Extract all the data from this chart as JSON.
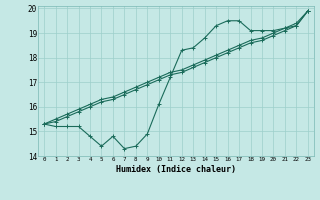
{
  "xlabel": "Humidex (Indice chaleur)",
  "xlim": [
    -0.5,
    23.5
  ],
  "ylim": [
    14,
    20.1
  ],
  "yticks": [
    14,
    15,
    16,
    17,
    18,
    19,
    20
  ],
  "xticks": [
    0,
    1,
    2,
    3,
    4,
    5,
    6,
    7,
    8,
    9,
    10,
    11,
    12,
    13,
    14,
    15,
    16,
    17,
    18,
    19,
    20,
    21,
    22,
    23
  ],
  "background_color": "#c5e8e5",
  "grid_color": "#9dcfcb",
  "line_color": "#1a6b5a",
  "line1": [
    15.3,
    15.2,
    15.2,
    15.2,
    14.8,
    14.4,
    14.8,
    14.3,
    14.4,
    14.9,
    16.1,
    17.2,
    18.3,
    18.4,
    18.8,
    19.3,
    19.5,
    19.5,
    19.1,
    19.1,
    19.1,
    19.2,
    19.3,
    19.9
  ],
  "line2": [
    15.3,
    15.5,
    15.7,
    15.9,
    16.1,
    16.3,
    16.4,
    16.6,
    16.8,
    17.0,
    17.2,
    17.4,
    17.5,
    17.7,
    17.9,
    18.1,
    18.3,
    18.5,
    18.7,
    18.8,
    19.0,
    19.2,
    19.4,
    19.9
  ],
  "line3": [
    15.3,
    15.4,
    15.6,
    15.8,
    16.0,
    16.2,
    16.3,
    16.5,
    16.7,
    16.9,
    17.1,
    17.3,
    17.4,
    17.6,
    17.8,
    18.0,
    18.2,
    18.4,
    18.6,
    18.7,
    18.9,
    19.1,
    19.3,
    19.9
  ]
}
